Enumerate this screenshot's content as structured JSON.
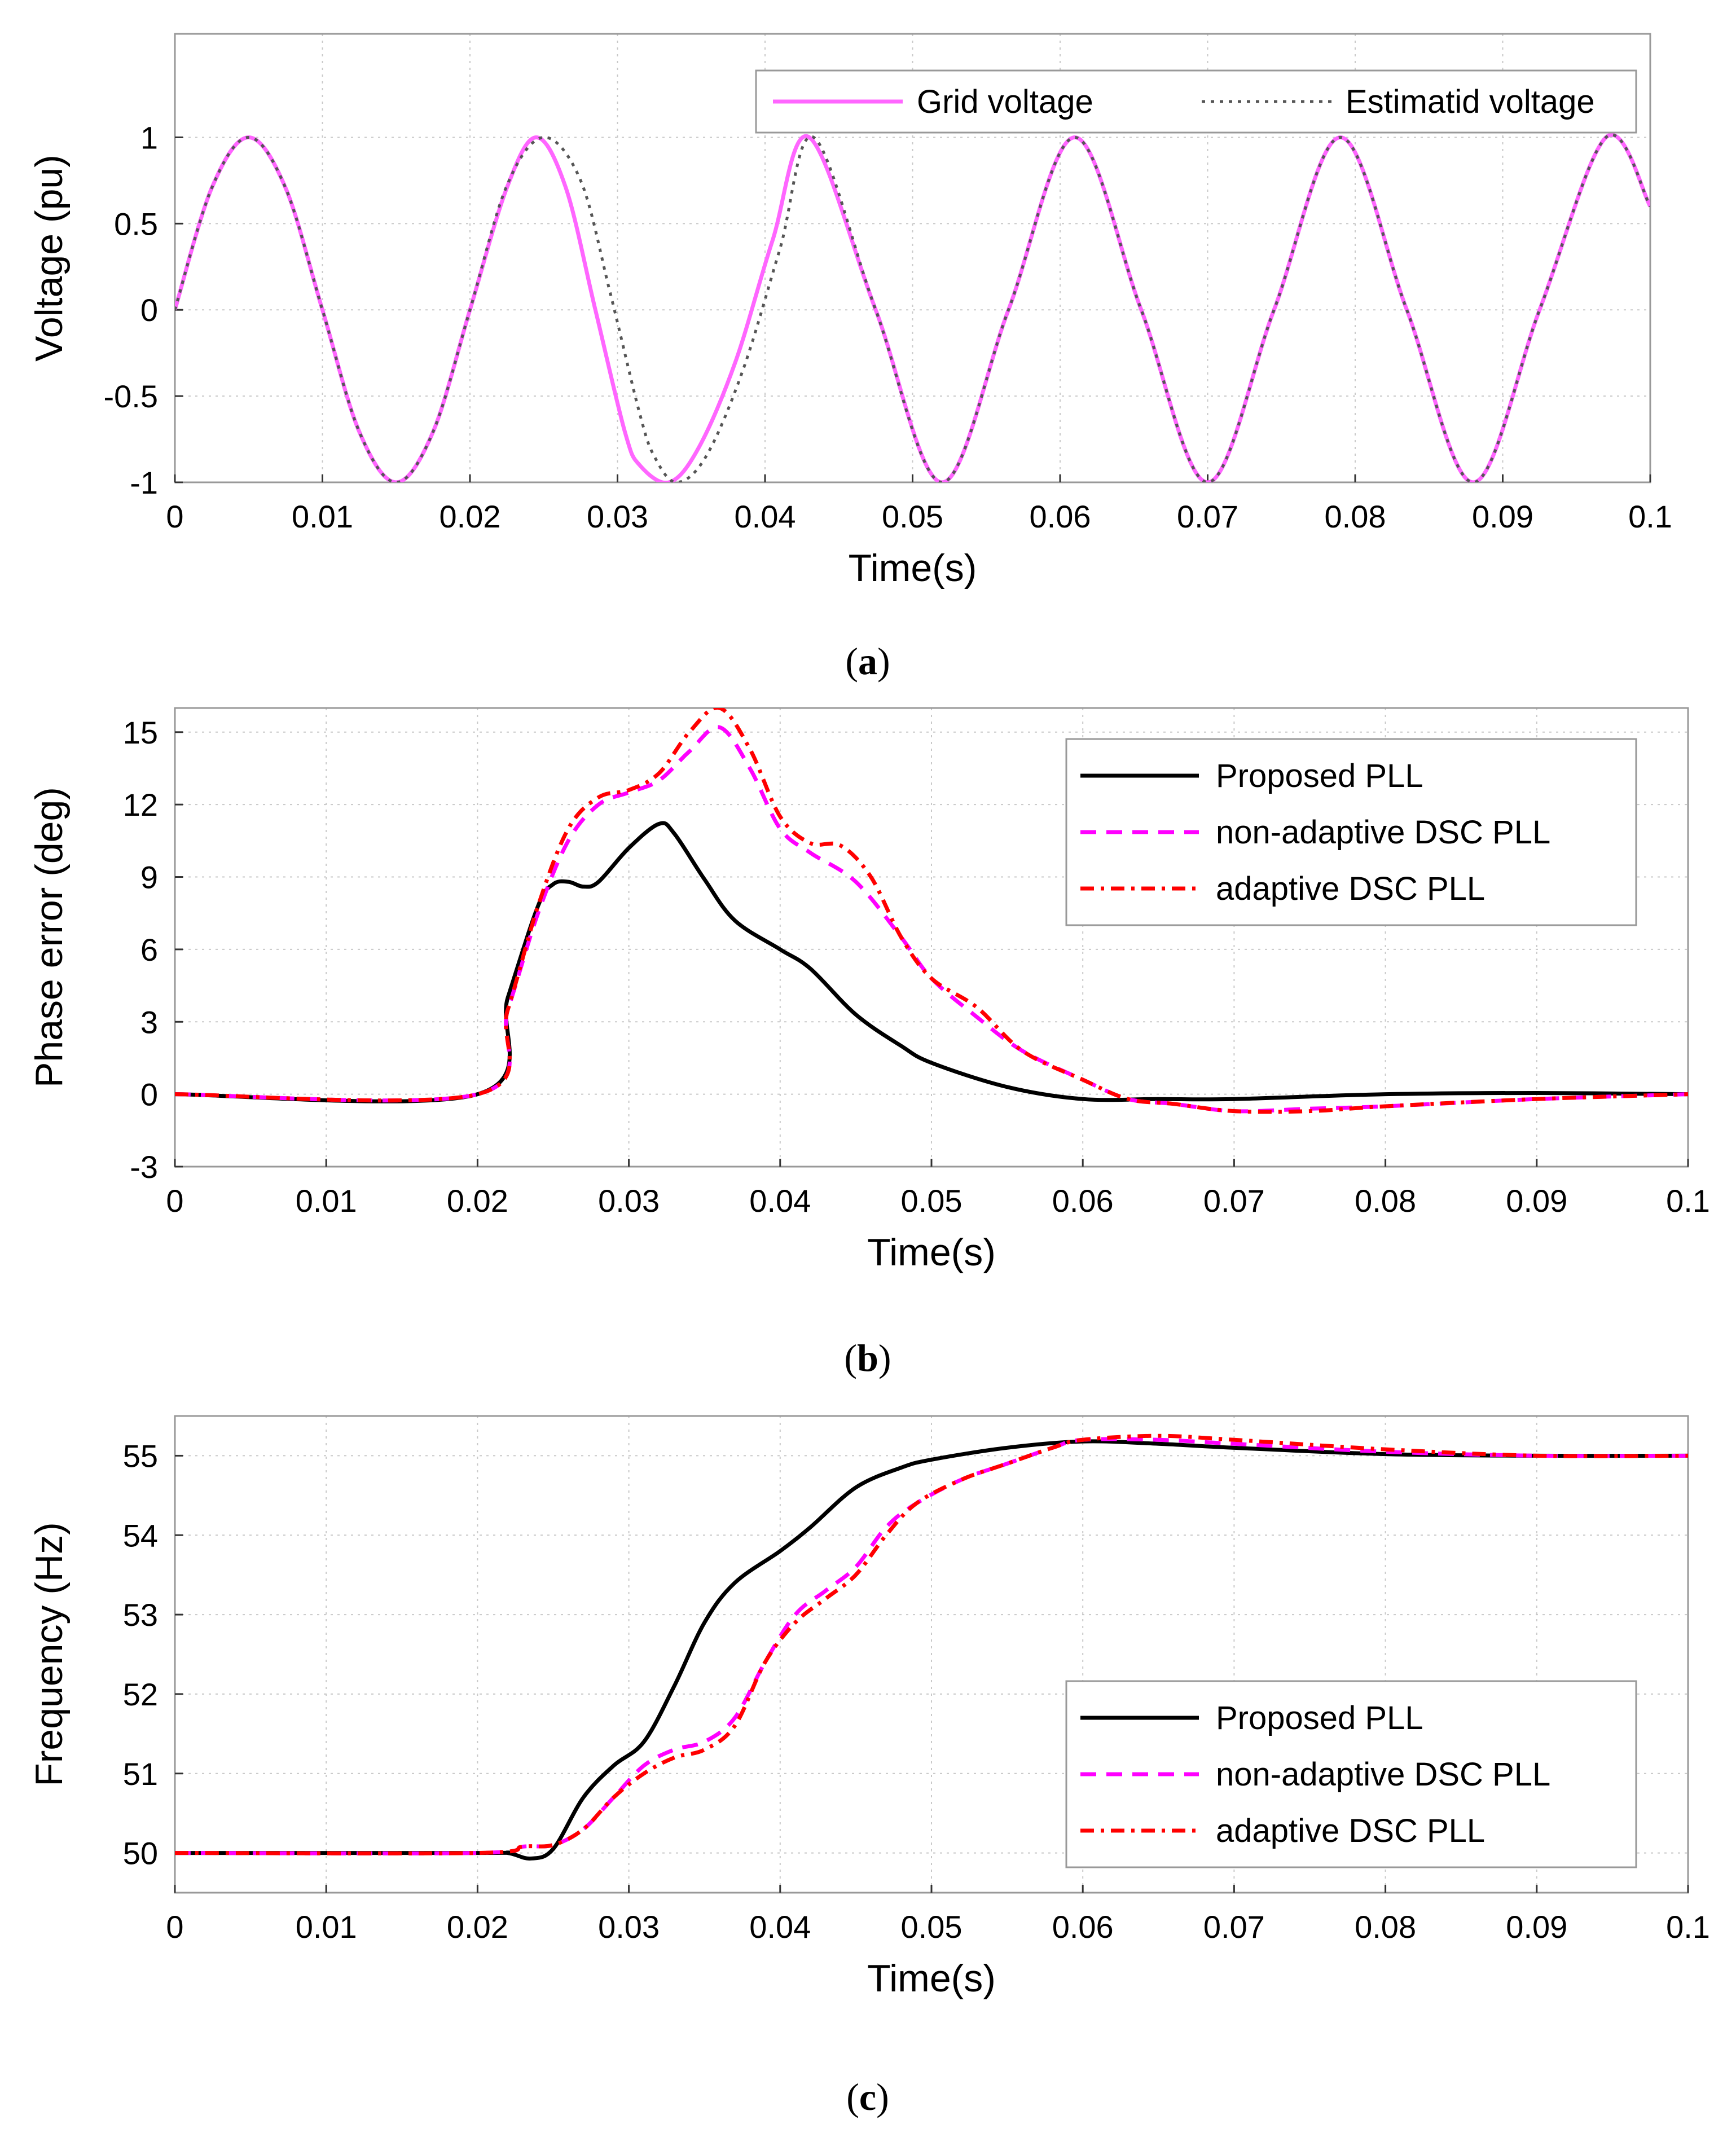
{
  "chart_data": [
    {
      "type": "line",
      "caption": "a",
      "xlabel": "Time(s)",
      "ylabel": "Voltage (pu)",
      "xlim": [
        0,
        0.1
      ],
      "ylim": [
        -1,
        1.6
      ],
      "xticks": [
        "0",
        "0.01",
        "0.02",
        "0.03",
        "0.04",
        "0.05",
        "0.06",
        "0.07",
        "0.08",
        "0.09",
        "0.1"
      ],
      "yticks": [
        "-1",
        "-0.5",
        "0",
        "0.5",
        "1"
      ],
      "grid": true,
      "legend": "top-right",
      "series": [
        {
          "name": "Grid voltage",
          "color": "#ff66ff",
          "style": "solid",
          "x": [
            0,
            0.0025,
            0.005,
            0.0075,
            0.01,
            0.0125,
            0.015,
            0.0175,
            0.02,
            0.0225,
            0.0245,
            0.0265,
            0.0285,
            0.0305,
            0.0315,
            0.0335,
            0.0355,
            0.038,
            0.0405,
            0.043,
            0.0475,
            0.052,
            0.0565,
            0.061,
            0.0655,
            0.07,
            0.0745,
            0.079,
            0.0835,
            0.088,
            0.0925,
            0.097,
            0.1
          ],
          "y": [
            0,
            0.707,
            1,
            0.707,
            0,
            -0.707,
            -1,
            -0.707,
            0,
            0.707,
            1,
            0.707,
            0,
            -0.707,
            -0.9,
            -1,
            -0.8,
            -0.3,
            0.4,
            1,
            0,
            -1,
            0,
            1,
            0,
            -1,
            0,
            1,
            0,
            -1,
            0,
            1,
            0.6
          ]
        },
        {
          "name": "Estimatid voltage",
          "color": "#555555",
          "style": "dotted",
          "x": [
            0,
            0.0025,
            0.005,
            0.0075,
            0.01,
            0.0125,
            0.015,
            0.0175,
            0.02,
            0.0225,
            0.025,
            0.0275,
            0.0295,
            0.0315,
            0.0325,
            0.034,
            0.036,
            0.0385,
            0.041,
            0.0433,
            0.0475,
            0.052,
            0.0565,
            0.061,
            0.0655,
            0.07,
            0.0745,
            0.079,
            0.0835,
            0.088,
            0.0925,
            0.097,
            0.1
          ],
          "y": [
            0,
            0.707,
            1,
            0.707,
            0,
            -0.707,
            -1,
            -0.707,
            0,
            0.72,
            1,
            0.75,
            0.1,
            -0.6,
            -0.85,
            -1,
            -0.85,
            -0.35,
            0.35,
            1,
            0,
            -1,
            0,
            1,
            0,
            -1,
            0,
            1,
            0,
            -1,
            0,
            1,
            0.6
          ]
        }
      ]
    },
    {
      "type": "line",
      "caption": "b",
      "xlabel": "Time(s)",
      "ylabel": "Phase error (deg)",
      "xlim": [
        0,
        0.1
      ],
      "ylim": [
        -3,
        16
      ],
      "xticks": [
        "0",
        "0.01",
        "0.02",
        "0.03",
        "0.04",
        "0.05",
        "0.06",
        "0.07",
        "0.08",
        "0.09",
        "0.1"
      ],
      "yticks": [
        "-3",
        "0",
        "3",
        "6",
        "9",
        "12",
        "15"
      ],
      "grid": true,
      "legend": "top-right",
      "series": [
        {
          "name": "Proposed PLL",
          "color": "#000000",
          "style": "solid",
          "x": [
            0,
            0.02,
            0.022,
            0.024,
            0.025,
            0.026,
            0.027,
            0.028,
            0.03,
            0.032,
            0.033,
            0.035,
            0.037,
            0.04,
            0.042,
            0.045,
            0.048,
            0.05,
            0.055,
            0.06,
            0.065,
            0.07,
            0.08,
            0.09,
            0.1
          ],
          "y": [
            0,
            0,
            4,
            7.8,
            8.7,
            8.8,
            8.6,
            8.8,
            10.2,
            11.2,
            10.8,
            8.9,
            7.2,
            6.0,
            5.2,
            3.3,
            2.0,
            1.3,
            0.3,
            -0.2,
            -0.2,
            -0.2,
            0,
            0.05,
            0
          ]
        },
        {
          "name": "non-adaptive DSC PLL",
          "color": "#ff00ff",
          "style": "dashed",
          "x": [
            0,
            0.02,
            0.022,
            0.024,
            0.026,
            0.028,
            0.03,
            0.032,
            0.034,
            0.036,
            0.038,
            0.04,
            0.042,
            0.045,
            0.048,
            0.05,
            0.053,
            0.056,
            0.06,
            0.063,
            0.066,
            0.07,
            0.075,
            0.08,
            0.09,
            0.1
          ],
          "y": [
            0,
            0,
            3.5,
            7.5,
            10.5,
            12,
            12.5,
            13,
            14.2,
            15.2,
            13.5,
            11,
            10,
            8.8,
            6.5,
            4.8,
            3.2,
            1.8,
            0.6,
            -0.2,
            -0.4,
            -0.7,
            -0.6,
            -0.5,
            -0.2,
            0
          ]
        },
        {
          "name": "adaptive DSC PLL",
          "color": "#ff0000",
          "style": "dashdot",
          "x": [
            0,
            0.02,
            0.022,
            0.024,
            0.026,
            0.028,
            0.03,
            0.032,
            0.034,
            0.036,
            0.038,
            0.04,
            0.042,
            0.044,
            0.046,
            0.048,
            0.05,
            0.053,
            0.056,
            0.06,
            0.063,
            0.066,
            0.07,
            0.075,
            0.08,
            0.09,
            0.1
          ],
          "y": [
            0,
            0,
            3.5,
            7.8,
            11,
            12.3,
            12.6,
            13.3,
            15,
            16,
            14.3,
            11.5,
            10.4,
            10.3,
            9,
            6.5,
            4.8,
            3.6,
            1.8,
            0.6,
            -0.2,
            -0.4,
            -0.7,
            -0.7,
            -0.5,
            -0.2,
            0
          ]
        }
      ]
    },
    {
      "type": "line",
      "caption": "c",
      "xlabel": "Time(s)",
      "ylabel": "Frequency (Hz)",
      "xlim": [
        0,
        0.1
      ],
      "ylim": [
        49.5,
        55.5
      ],
      "xticks": [
        "0",
        "0.01",
        "0.02",
        "0.03",
        "0.04",
        "0.05",
        "0.06",
        "0.07",
        "0.08",
        "0.09",
        "0.1"
      ],
      "yticks": [
        "50",
        "51",
        "52",
        "53",
        "54",
        "55"
      ],
      "grid": true,
      "legend": "bottom-right",
      "series": [
        {
          "name": "Proposed PLL",
          "color": "#000000",
          "style": "solid",
          "x": [
            0,
            0.02,
            0.022,
            0.0235,
            0.025,
            0.027,
            0.029,
            0.031,
            0.033,
            0.035,
            0.037,
            0.04,
            0.042,
            0.045,
            0.048,
            0.05,
            0.055,
            0.06,
            0.065,
            0.07,
            0.08,
            0.09,
            0.1
          ],
          "y": [
            50,
            50,
            50.0,
            49.93,
            50.05,
            50.7,
            51.1,
            51.4,
            52.1,
            52.9,
            53.4,
            53.8,
            54.1,
            54.6,
            54.85,
            54.95,
            55.1,
            55.18,
            55.15,
            55.1,
            55.02,
            55.0,
            55.0
          ]
        },
        {
          "name": "non-adaptive DSC PLL",
          "color": "#ff00ff",
          "style": "dashed",
          "x": [
            0,
            0.02,
            0.023,
            0.025,
            0.027,
            0.029,
            0.031,
            0.033,
            0.035,
            0.037,
            0.039,
            0.041,
            0.043,
            0.045,
            0.047,
            0.049,
            0.052,
            0.055,
            0.058,
            0.06,
            0.065,
            0.07,
            0.08,
            0.09,
            0.1
          ],
          "y": [
            50,
            50,
            50.08,
            50.1,
            50.3,
            50.7,
            51.1,
            51.3,
            51.4,
            51.7,
            52.4,
            53.0,
            53.3,
            53.6,
            54.1,
            54.4,
            54.7,
            54.9,
            55.1,
            55.2,
            55.2,
            55.15,
            55.05,
            55.0,
            55.0
          ]
        },
        {
          "name": "adaptive DSC PLL",
          "color": "#ff0000",
          "style": "dashdot",
          "x": [
            0,
            0.02,
            0.023,
            0.025,
            0.027,
            0.029,
            0.031,
            0.033,
            0.035,
            0.037,
            0.039,
            0.041,
            0.043,
            0.045,
            0.047,
            0.049,
            0.052,
            0.055,
            0.058,
            0.06,
            0.065,
            0.07,
            0.08,
            0.09,
            0.1
          ],
          "y": [
            50,
            50,
            50.08,
            50.1,
            50.3,
            50.7,
            51.0,
            51.2,
            51.3,
            51.6,
            52.4,
            52.9,
            53.2,
            53.5,
            54.0,
            54.4,
            54.7,
            54.9,
            55.1,
            55.2,
            55.25,
            55.2,
            55.08,
            55.0,
            55.0
          ]
        }
      ]
    }
  ]
}
